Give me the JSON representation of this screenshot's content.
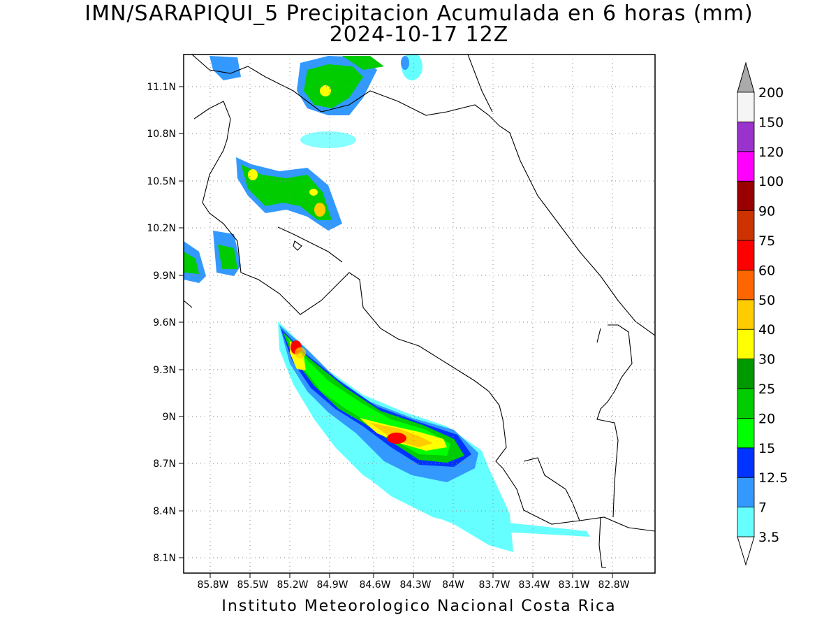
{
  "title_line1": "IMN/SARAPIQUI_5 Precipitacion Acumulada en 6 horas (mm)",
  "title_line2": "2024-10-17 12Z",
  "footer": "Instituto Meteorologico Nacional Costa Rica",
  "map": {
    "lat_range": [
      7.97,
      11.3
    ],
    "lon_range": [
      -86.0,
      -82.4
    ],
    "lat_ticks": [
      "11.1N",
      "10.8N",
      "10.5N",
      "10.2N",
      "9.9N",
      "9.6N",
      "9.3N",
      "9N",
      "8.7N",
      "8.4N",
      "8.1N"
    ],
    "lon_ticks": [
      "85.8W",
      "85.5W",
      "85.2W",
      "84.9W",
      "84.6W",
      "84.3W",
      "84W",
      "83.7W",
      "83.4W",
      "83.1W",
      "82.8W"
    ],
    "grid": "dotted"
  },
  "legend": {
    "levels": [
      "3.5",
      "7",
      "12.5",
      "15",
      "20",
      "25",
      "30",
      "40",
      "50",
      "60",
      "75",
      "90",
      "100",
      "120",
      "150",
      "200"
    ],
    "colors": [
      "#66ffff",
      "#3399ff",
      "#0033ff",
      "#00ff00",
      "#00cc00",
      "#009900",
      "#ffff00",
      "#ffcc00",
      "#ff6600",
      "#ff0000",
      "#cc3300",
      "#990000",
      "#ff00ff",
      "#9933cc",
      "#f5f5f5"
    ],
    "under_color": "#ffffff",
    "over_color": "#aaaaaa"
  }
}
